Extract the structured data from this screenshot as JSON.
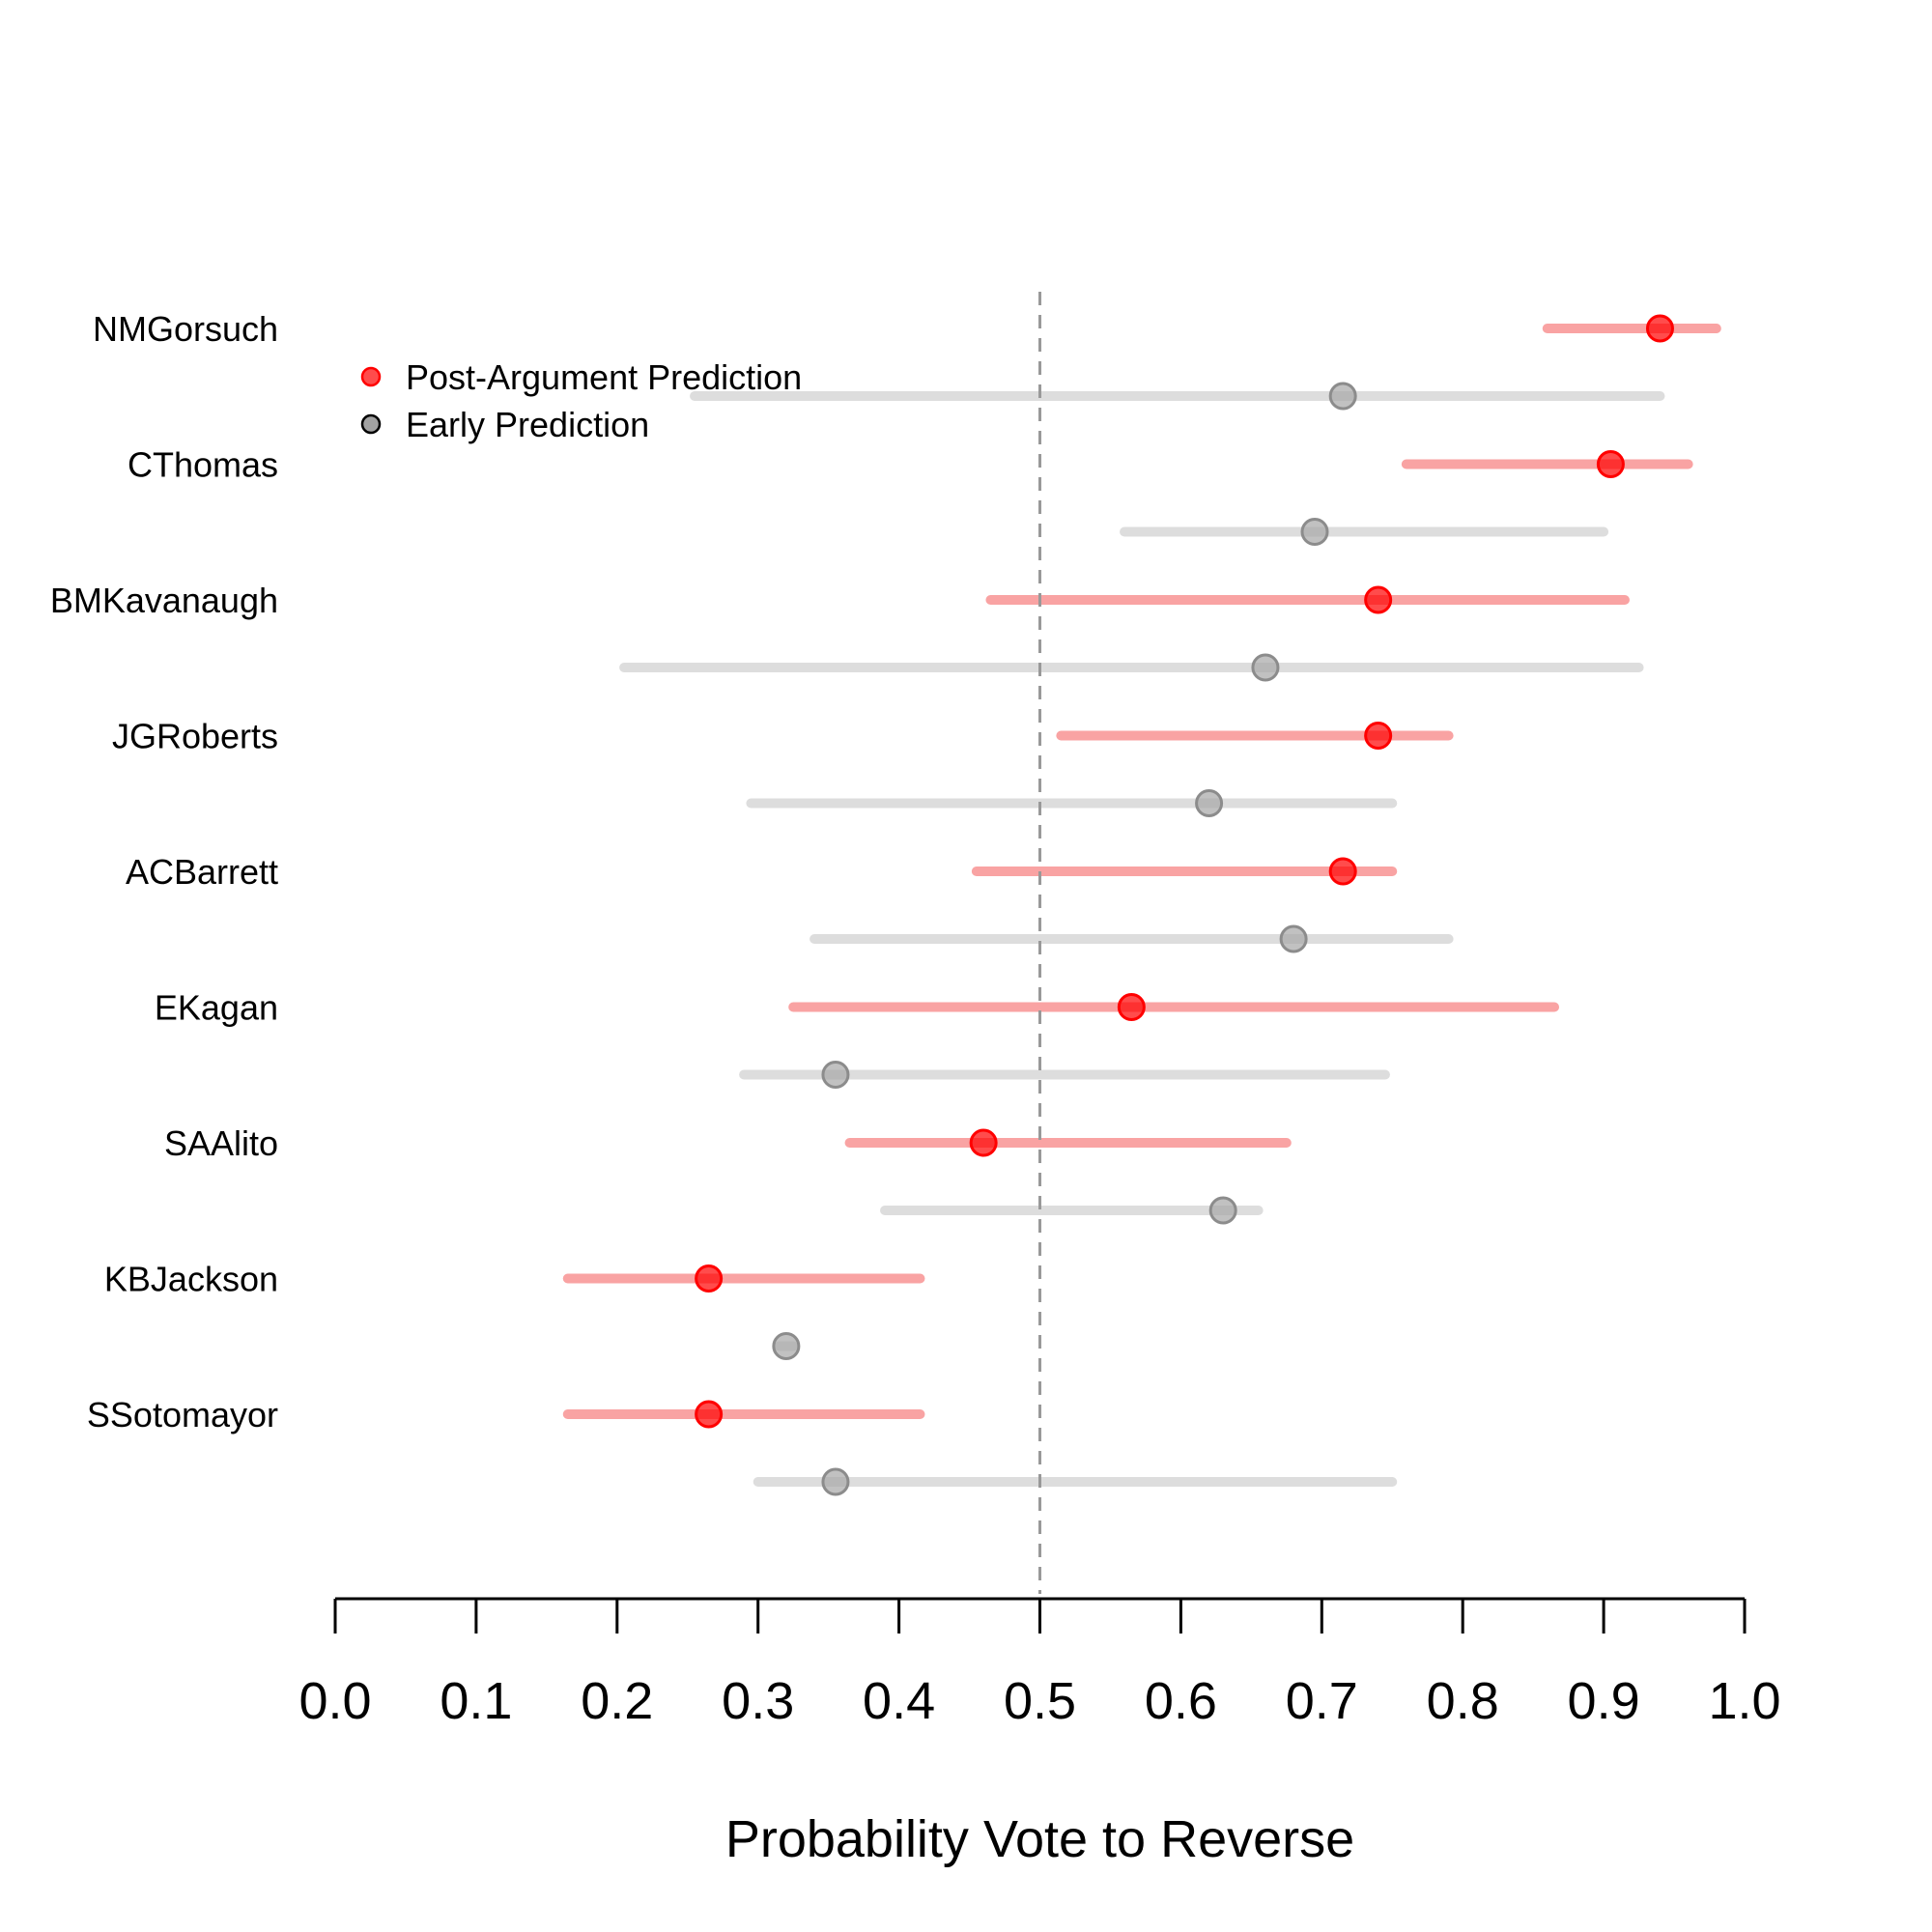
{
  "chart_data": {
    "type": "dot-interval",
    "xlabel": "Probability Vote to Reverse",
    "xlim": [
      0,
      1
    ],
    "xticks": [
      0.0,
      0.1,
      0.2,
      0.3,
      0.4,
      0.5,
      0.6,
      0.7,
      0.8,
      0.9,
      1.0
    ],
    "xtick_labels": [
      "0.0",
      "0.1",
      "0.2",
      "0.3",
      "0.4",
      "0.5",
      "0.6",
      "0.7",
      "0.8",
      "0.9",
      "1.0"
    ],
    "reference_line": 0.5,
    "legend": {
      "placement": "top-left",
      "entries": [
        {
          "label": "Post-Argument Prediction",
          "color": "#ff0000"
        },
        {
          "label": "Early Prediction",
          "color": "#000000"
        }
      ]
    },
    "colors": {
      "post_point": "#ff0000",
      "post_interval": "#f9a3a3",
      "early_point": "#a6a6a6",
      "early_interval": "#dddddd",
      "reference_line": "#999999"
    },
    "justices": [
      {
        "name": "NMGorsuch",
        "post": {
          "point": 0.94,
          "low": 0.86,
          "high": 0.98
        },
        "early": {
          "point": 0.715,
          "low": 0.255,
          "high": 0.94
        }
      },
      {
        "name": "CThomas",
        "post": {
          "point": 0.905,
          "low": 0.76,
          "high": 0.96
        },
        "early": {
          "point": 0.695,
          "low": 0.56,
          "high": 0.9
        }
      },
      {
        "name": "BMKavanaugh",
        "post": {
          "point": 0.74,
          "low": 0.465,
          "high": 0.915
        },
        "early": {
          "point": 0.66,
          "low": 0.205,
          "high": 0.925
        }
      },
      {
        "name": "JGRoberts",
        "post": {
          "point": 0.74,
          "low": 0.515,
          "high": 0.79
        },
        "early": {
          "point": 0.62,
          "low": 0.295,
          "high": 0.75
        }
      },
      {
        "name": "ACBarrett",
        "post": {
          "point": 0.715,
          "low": 0.455,
          "high": 0.75
        },
        "early": {
          "point": 0.68,
          "low": 0.34,
          "high": 0.79
        }
      },
      {
        "name": "EKagan",
        "post": {
          "point": 0.565,
          "low": 0.325,
          "high": 0.865
        },
        "early": {
          "point": 0.355,
          "low": 0.29,
          "high": 0.745
        }
      },
      {
        "name": "SAAlito",
        "post": {
          "point": 0.46,
          "low": 0.365,
          "high": 0.675
        },
        "early": {
          "point": 0.63,
          "low": 0.39,
          "high": 0.655
        }
      },
      {
        "name": "KBJackson",
        "post": {
          "point": 0.265,
          "low": 0.165,
          "high": 0.415
        },
        "early": {
          "point": 0.32,
          "low": 0.315,
          "high": 0.325
        }
      },
      {
        "name": "SSotomayor",
        "post": {
          "point": 0.265,
          "low": 0.165,
          "high": 0.415
        },
        "early": {
          "point": 0.355,
          "low": 0.3,
          "high": 0.75
        }
      }
    ]
  }
}
